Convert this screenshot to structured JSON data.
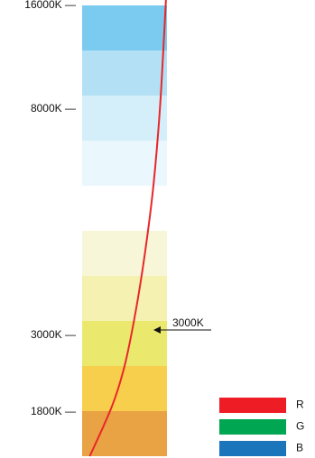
{
  "chart_data": {
    "type": "heatmap",
    "bands": [
      {
        "color": "#e9a244",
        "from": 1,
        "to": 1
      },
      {
        "color": "#f8cf4c",
        "from": 2,
        "to": 2
      },
      {
        "color": "#eae96e",
        "from": 3,
        "to": 3
      },
      {
        "color": "#f4f1b1",
        "from": 4,
        "to": 4
      },
      {
        "color": "#f8f6d8",
        "from": 5,
        "to": 5
      },
      {
        "color": "#ffffff",
        "from": 6,
        "to": 6
      },
      {
        "color": "#eaf7fd",
        "from": 7,
        "to": 7
      },
      {
        "color": "#d4eff9",
        "from": 8,
        "to": 8
      },
      {
        "color": "#b3e0f4",
        "from": 9,
        "to": 9
      },
      {
        "color": "#7bcaef",
        "from": 10,
        "to": 10
      }
    ],
    "ticks": [
      {
        "label": "16000K —",
        "level": 10
      },
      {
        "label": "8000K —",
        "level": 7.7
      },
      {
        "label": "3000K —",
        "level": 2.68
      },
      {
        "label": "1800K —",
        "level": 0.98
      }
    ],
    "annotation": {
      "label": "3000K",
      "level": 2.8
    },
    "curve": {
      "color": "#e8272a",
      "points": [
        [
          0.09,
          0.0
        ],
        [
          0.35,
          1.1
        ],
        [
          0.5,
          2.0
        ],
        [
          0.63,
          3.2
        ],
        [
          0.74,
          4.5
        ],
        [
          0.84,
          6.0
        ],
        [
          0.92,
          7.8
        ],
        [
          0.99,
          10.2
        ]
      ]
    },
    "legend": [
      {
        "label": "R",
        "color": "#ee1c25"
      },
      {
        "label": "G",
        "color": "#00a651"
      },
      {
        "label": "B",
        "color": "#1b75bb"
      }
    ]
  }
}
